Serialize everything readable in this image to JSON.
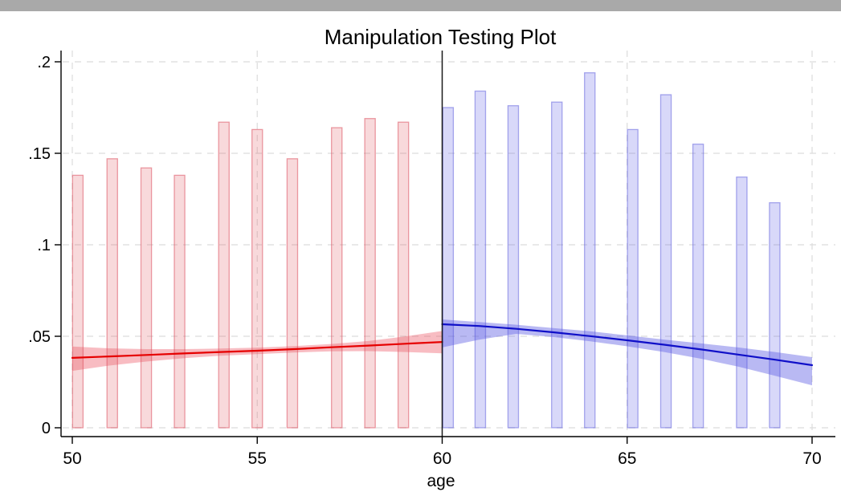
{
  "window": {
    "topbar_color": "#a9a9a9",
    "background_color": "#ffffff"
  },
  "chart_data": {
    "type": "rd-density-manipulation-test (histogram bars + local polynomial density fit with confidence bands)",
    "title": "Manipulation Testing Plot",
    "xlabel": "age",
    "cutoff_x": 60,
    "grid": true,
    "xlim": [
      49.7,
      70.65
    ],
    "ylim": [
      0,
      0.206
    ],
    "x_ticks": [
      50,
      55,
      60,
      65,
      70
    ],
    "y_ticks": [
      {
        "label": "0",
        "value": 0
      },
      {
        "label": ".05",
        "value": 0.05
      },
      {
        "label": ".1",
        "value": 0.1
      },
      {
        "label": ".15",
        "value": 0.15
      },
      {
        "label": ".2",
        "value": 0.2
      }
    ],
    "colors": {
      "left_line": "#e60000",
      "left_band": "rgba(235,70,85,0.36)",
      "left_bar_fill": "rgba(225,95,105,0.24)",
      "left_bar_stroke": "rgba(220,80,95,0.55)",
      "right_line": "#0f0fc8",
      "right_band": "rgba(80,80,225,0.40)",
      "right_bar_fill": "rgba(100,100,230,0.25)",
      "right_bar_stroke": "rgba(90,90,220,0.50)",
      "cutoff_line": "#1a1a1a",
      "axis": "#000000",
      "gridline": "#dcdcdc"
    },
    "series": [
      {
        "name": "left-histogram",
        "type": "bar",
        "side": "left",
        "bar_width_x": 0.285,
        "centers": [
          50.15,
          51.08,
          52.0,
          52.9,
          54.1,
          55.0,
          55.95,
          57.15,
          58.05,
          58.95
        ],
        "heights": [
          0.138,
          0.147,
          0.142,
          0.138,
          0.167,
          0.163,
          0.147,
          0.164,
          0.169,
          0.167
        ]
      },
      {
        "name": "right-histogram",
        "type": "bar",
        "side": "right",
        "bar_width_x": 0.285,
        "centers": [
          60.16,
          61.03,
          61.92,
          63.1,
          63.99,
          65.15,
          66.05,
          66.92,
          68.1,
          68.99
        ],
        "heights": [
          0.175,
          0.184,
          0.176,
          0.178,
          0.194,
          0.163,
          0.182,
          0.155,
          0.137,
          0.123
        ]
      },
      {
        "name": "left-fit",
        "type": "line-with-band",
        "side": "left",
        "x": [
          50,
          51,
          52,
          53,
          54,
          55,
          56,
          57,
          58,
          59,
          60
        ],
        "y": [
          0.0382,
          0.039,
          0.0398,
          0.0406,
          0.0414,
          0.0421,
          0.043,
          0.044,
          0.0449,
          0.0459,
          0.0469
        ],
        "upper": [
          0.0444,
          0.0434,
          0.043,
          0.043,
          0.0433,
          0.0438,
          0.0446,
          0.0458,
          0.0474,
          0.0499,
          0.0529
        ],
        "lower": [
          0.0311,
          0.034,
          0.0362,
          0.038,
          0.0394,
          0.0402,
          0.0411,
          0.0418,
          0.0419,
          0.0414,
          0.0407
        ]
      },
      {
        "name": "right-fit",
        "type": "line-with-band",
        "side": "right",
        "x": [
          60,
          61,
          62,
          63,
          64,
          65,
          66,
          67,
          68,
          69,
          70
        ],
        "y": [
          0.0566,
          0.0556,
          0.0541,
          0.0522,
          0.0501,
          0.0478,
          0.0454,
          0.0428,
          0.04,
          0.0372,
          0.0342
        ],
        "upper": [
          0.0592,
          0.0578,
          0.0563,
          0.0545,
          0.0527,
          0.0505,
          0.0482,
          0.0461,
          0.0439,
          0.0414,
          0.0386
        ],
        "lower": [
          0.0439,
          0.0481,
          0.0513,
          0.0496,
          0.0473,
          0.0445,
          0.0414,
          0.0377,
          0.0334,
          0.0284,
          0.0232
        ]
      }
    ]
  }
}
